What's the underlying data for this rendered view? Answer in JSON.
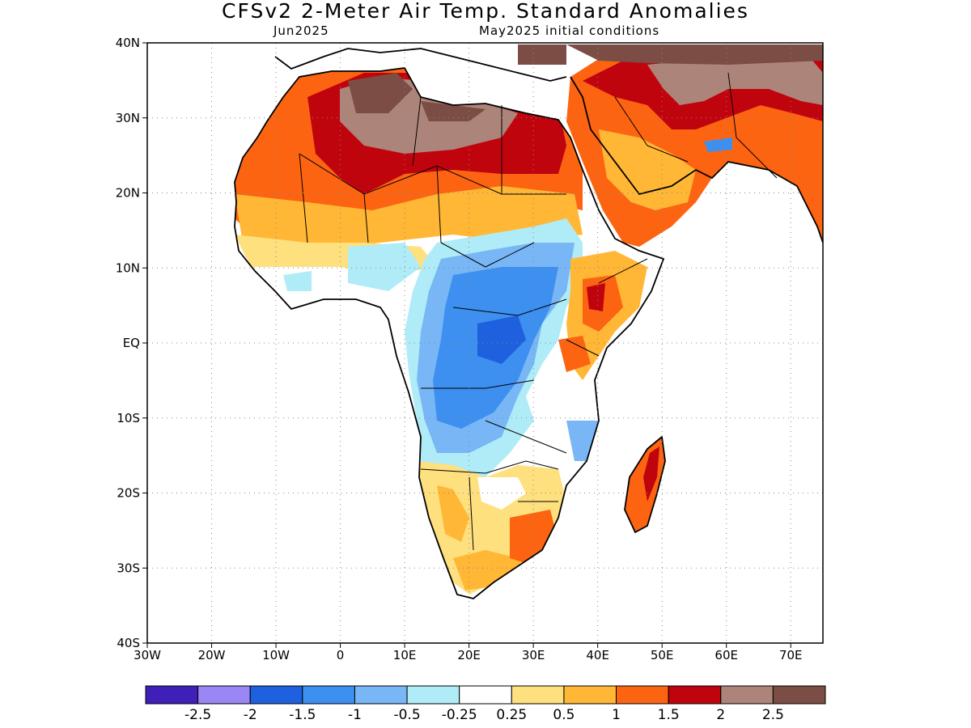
{
  "title": "CFSv2 2-Meter Air Temp. Standard Anomalies",
  "subtitle_left": "Jun2025",
  "subtitle_right": "May2025 initial conditions",
  "axes": {
    "lat_labels": [
      {
        "lat": 40,
        "label": "40N"
      },
      {
        "lat": 30,
        "label": "30N"
      },
      {
        "lat": 20,
        "label": "20N"
      },
      {
        "lat": 10,
        "label": "10N"
      },
      {
        "lat": 0,
        "label": "EQ"
      },
      {
        "lat": -10,
        "label": "10S"
      },
      {
        "lat": -20,
        "label": "20S"
      },
      {
        "lat": -30,
        "label": "30S"
      },
      {
        "lat": -40,
        "label": "40S"
      }
    ],
    "lon_labels": [
      {
        "lon": -30,
        "label": "30W"
      },
      {
        "lon": -20,
        "label": "20W"
      },
      {
        "lon": -10,
        "label": "10W"
      },
      {
        "lon": 0,
        "label": "0"
      },
      {
        "lon": 10,
        "label": "10E"
      },
      {
        "lon": 20,
        "label": "20E"
      },
      {
        "lon": 30,
        "label": "30E"
      },
      {
        "lon": 40,
        "label": "40E"
      },
      {
        "lon": 50,
        "label": "50E"
      },
      {
        "lon": 60,
        "label": "60E"
      },
      {
        "lon": 70,
        "label": "70E"
      }
    ],
    "lon_range": [
      -30,
      75
    ],
    "lat_range": [
      -40,
      40
    ],
    "grid": true
  },
  "colorbar": {
    "colors": [
      "#3f1fb8",
      "#9a86f5",
      "#1f60de",
      "#3d8ff0",
      "#78b6f6",
      "#b0ecf7",
      "#ffffff",
      "#ffe07f",
      "#ffb735",
      "#fc6412",
      "#c0040e",
      "#ad847a",
      "#7b4d44"
    ],
    "labels": [
      "-2.5",
      "-2",
      "-1.5",
      "-1",
      "-0.5",
      "-0.25",
      "0.25",
      "0.5",
      "1",
      "1.5",
      "2",
      "2.5"
    ]
  }
}
